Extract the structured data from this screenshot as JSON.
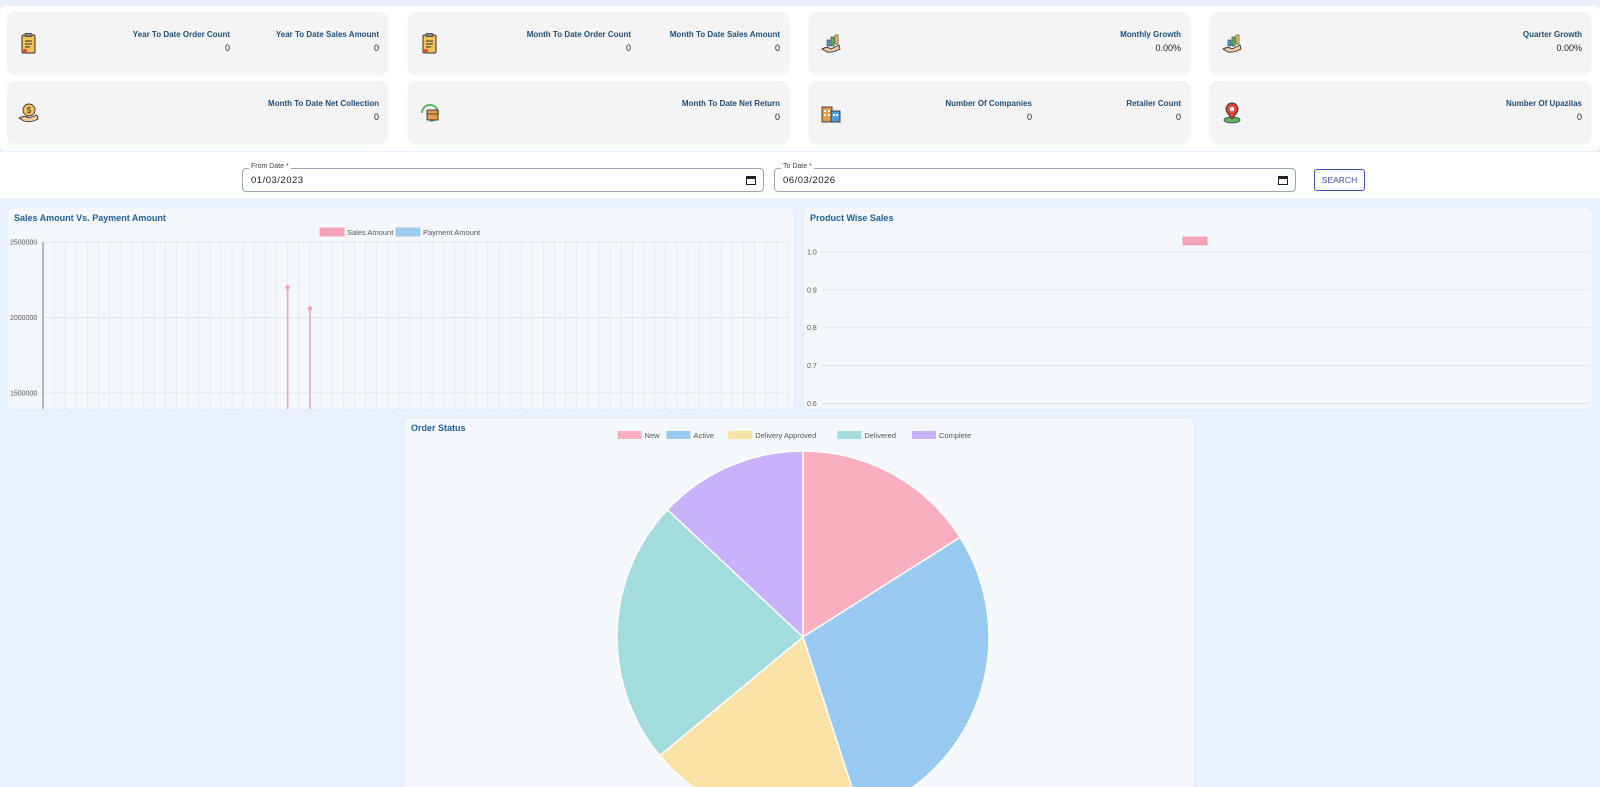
{
  "kpis": {
    "ytd": {
      "order_count_label": "Year To Date Order Count",
      "order_count_value": "0",
      "sales_amount_label": "Year To Date Sales Amount",
      "sales_amount_value": "0"
    },
    "mtd": {
      "order_count_label": "Month To Date Order Count",
      "order_count_value": "0",
      "sales_amount_label": "Month To Date Sales Amount",
      "sales_amount_value": "0"
    },
    "monthly_growth": {
      "label": "Monthly Growth",
      "value": "0.00%"
    },
    "quarter_growth": {
      "label": "Quarter Growth",
      "value": "0.00%"
    },
    "net_collection": {
      "label": "Month To Date Net Collection",
      "value": "0"
    },
    "net_return": {
      "label": "Month To Date Net Return",
      "value": "0"
    },
    "companies": {
      "companies_label": "Number Of Companies",
      "companies_value": "0",
      "retailer_label": "Retailer Count",
      "retailer_value": "0"
    },
    "upazilas": {
      "label": "Number Of Upazilas",
      "value": "0"
    }
  },
  "filter": {
    "from_label": "From Date *",
    "from_value": "01/03/2023",
    "to_label": "To Date *",
    "to_value": "06/03/2026",
    "search_label": "SEARCH"
  },
  "chart_data": [
    {
      "type": "line",
      "title": "Sales Amount Vs. Payment Amount",
      "xlabel": "",
      "ylabel": "",
      "ylim": [
        1380000,
        2500000
      ],
      "y_ticks": [
        "2500000",
        "2000000",
        "1500000"
      ],
      "grid": true,
      "legend_position": "top",
      "num_x_points": 68,
      "series": [
        {
          "name": "Sales Amount",
          "color": "#f4a3b8",
          "points": [
            {
              "x": 22,
              "y": 2200000
            },
            {
              "x": 24,
              "y": 2060000
            }
          ]
        },
        {
          "name": "Payment Amount",
          "color": "#9ccbf0",
          "points": []
        }
      ]
    },
    {
      "type": "bar",
      "title": "Product Wise Sales",
      "ylim": [
        0.58,
        1.0
      ],
      "y_ticks": [
        "1.0",
        "0.9",
        "0.8",
        "0.7",
        "0.6"
      ],
      "grid": true,
      "legend_position": "top",
      "categories": [],
      "series": [
        {
          "color": "#f4a3b8",
          "values": []
        }
      ]
    },
    {
      "type": "pie",
      "title": "Order Status",
      "legend_position": "top",
      "labels": [
        "New",
        "Active",
        "Delivery Approved",
        "Delivered",
        "Complete"
      ],
      "values": [
        16,
        29,
        19,
        23,
        13
      ],
      "colors": [
        "#f9afc0",
        "#99cbf2",
        "#fbe3a8",
        "#a2dcdc",
        "#c9b2fb"
      ]
    }
  ]
}
